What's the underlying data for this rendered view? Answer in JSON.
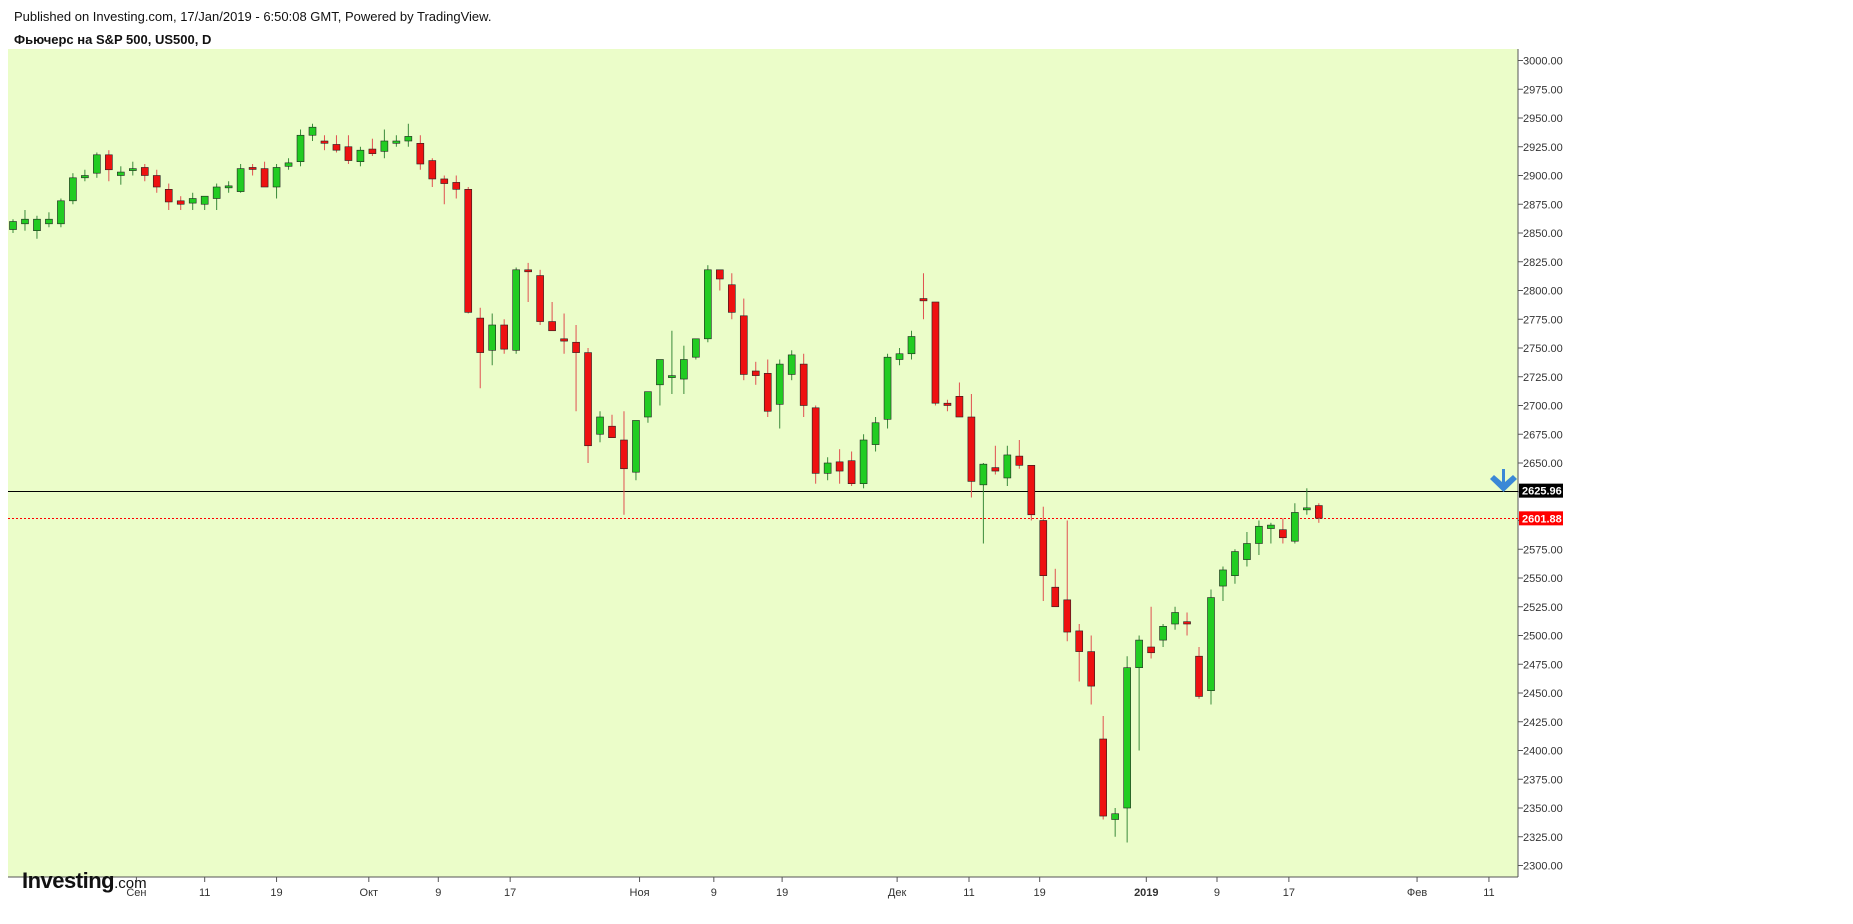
{
  "header": {
    "published": "Published on Investing.com, 17/Jan/2019 - 6:50:08 GMT, Powered by TradingView.",
    "title": "Фьючерс на S&P 500, US500, D"
  },
  "logo": {
    "main": "Investing",
    "suffix": ".com"
  },
  "colors": {
    "background": "#ebfdc9",
    "up": "#22cc22",
    "down": "#ee1111",
    "wick_up": "#3a8a3a",
    "wick_down": "#e05050",
    "arrow": "#3b88d6",
    "price_line_black": "#000000",
    "price_line_red": "#ff0000"
  },
  "chart_data": {
    "type": "candlestick",
    "title": "Фьючерс на S&P 500, US500, D",
    "ylim": [
      2290,
      3010
    ],
    "y_ticks": [
      "2300.00",
      "2325.00",
      "2350.00",
      "2375.00",
      "2400.00",
      "2425.00",
      "2450.00",
      "2475.00",
      "2500.00",
      "2525.00",
      "2550.00",
      "2575.00",
      "2600.00",
      "2625.00",
      "2650.00",
      "2675.00",
      "2700.00",
      "2725.00",
      "2750.00",
      "2775.00",
      "2800.00",
      "2825.00",
      "2850.00",
      "2875.00",
      "2900.00",
      "2925.00",
      "2950.00",
      "2975.00",
      "3000.00"
    ],
    "x_ticks": [
      {
        "label": "Сен",
        "bold": false
      },
      {
        "label": "11",
        "bold": false
      },
      {
        "label": "19",
        "bold": false
      },
      {
        "label": "Окт",
        "bold": false
      },
      {
        "label": "9",
        "bold": false
      },
      {
        "label": "17",
        "bold": false
      },
      {
        "label": "Ноя",
        "bold": false
      },
      {
        "label": "9",
        "bold": false
      },
      {
        "label": "19",
        "bold": false
      },
      {
        "label": "Дек",
        "bold": false
      },
      {
        "label": "11",
        "bold": false
      },
      {
        "label": "19",
        "bold": false
      },
      {
        "label": "2019",
        "bold": true
      },
      {
        "label": "9",
        "bold": false
      },
      {
        "label": "17",
        "bold": false
      },
      {
        "label": "Фев",
        "bold": false
      },
      {
        "label": "11",
        "bold": false
      }
    ],
    "price_lines": [
      {
        "value": 2625.96,
        "label": "2625.96",
        "color": "#000000"
      },
      {
        "value": 2601.88,
        "label": "2601.88",
        "color": "#ff0000"
      }
    ],
    "ohlc": [
      [
        2853,
        2862,
        2850,
        2860
      ],
      [
        2858,
        2870,
        2852,
        2862
      ],
      [
        2852,
        2865,
        2845,
        2862
      ],
      [
        2858,
        2868,
        2855,
        2862
      ],
      [
        2858,
        2880,
        2855,
        2878
      ],
      [
        2878,
        2902,
        2875,
        2898
      ],
      [
        2898,
        2905,
        2895,
        2900
      ],
      [
        2902,
        2920,
        2898,
        2918
      ],
      [
        2918,
        2922,
        2895,
        2905
      ],
      [
        2900,
        2908,
        2892,
        2903
      ],
      [
        2905,
        2912,
        2900,
        2906
      ],
      [
        2907,
        2910,
        2895,
        2900
      ],
      [
        2900,
        2905,
        2885,
        2890
      ],
      [
        2888,
        2893,
        2870,
        2877
      ],
      [
        2878,
        2882,
        2870,
        2875
      ],
      [
        2876,
        2885,
        2870,
        2880
      ],
      [
        2875,
        2882,
        2870,
        2882
      ],
      [
        2880,
        2893,
        2870,
        2890
      ],
      [
        2890,
        2895,
        2885,
        2891
      ],
      [
        2886,
        2910,
        2885,
        2906
      ],
      [
        2907,
        2910,
        2900,
        2906
      ],
      [
        2906,
        2912,
        2890,
        2890
      ],
      [
        2890,
        2910,
        2880,
        2907
      ],
      [
        2908,
        2915,
        2905,
        2911
      ],
      [
        2912,
        2940,
        2908,
        2935
      ],
      [
        2935,
        2945,
        2930,
        2942
      ],
      [
        2930,
        2935,
        2922,
        2928
      ],
      [
        2927,
        2935,
        2920,
        2922
      ],
      [
        2925,
        2935,
        2910,
        2913
      ],
      [
        2912,
        2925,
        2908,
        2922
      ],
      [
        2923,
        2932,
        2917,
        2919
      ],
      [
        2921,
        2940,
        2915,
        2930
      ],
      [
        2928,
        2935,
        2925,
        2930
      ],
      [
        2930,
        2945,
        2925,
        2934
      ],
      [
        2928,
        2935,
        2905,
        2910
      ],
      [
        2913,
        2915,
        2890,
        2897
      ],
      [
        2897,
        2900,
        2875,
        2893
      ],
      [
        2894,
        2900,
        2880,
        2888
      ],
      [
        2888,
        2890,
        2780,
        2781
      ],
      [
        2776,
        2785,
        2715,
        2746
      ],
      [
        2748,
        2780,
        2735,
        2770
      ],
      [
        2770,
        2775,
        2745,
        2749
      ],
      [
        2748,
        2820,
        2745,
        2818
      ],
      [
        2818,
        2824,
        2790,
        2817
      ],
      [
        2813,
        2818,
        2770,
        2773
      ],
      [
        2773,
        2790,
        2765,
        2765
      ],
      [
        2758,
        2780,
        2745,
        2756
      ],
      [
        2755,
        2770,
        2695,
        2746
      ],
      [
        2746,
        2750,
        2650,
        2665
      ],
      [
        2675,
        2695,
        2668,
        2690
      ],
      [
        2682,
        2692,
        2675,
        2672
      ],
      [
        2670,
        2695,
        2605,
        2645
      ],
      [
        2642,
        2687,
        2635,
        2687
      ],
      [
        2690,
        2712,
        2685,
        2712
      ],
      [
        2718,
        2735,
        2700,
        2740
      ],
      [
        2725,
        2765,
        2710,
        2726
      ],
      [
        2723,
        2752,
        2710,
        2740
      ],
      [
        2742,
        2758,
        2740,
        2758
      ],
      [
        2758,
        2822,
        2755,
        2818
      ],
      [
        2818,
        2818,
        2800,
        2810
      ],
      [
        2805,
        2815,
        2775,
        2781
      ],
      [
        2778,
        2793,
        2722,
        2727
      ],
      [
        2730,
        2738,
        2718,
        2726
      ],
      [
        2728,
        2740,
        2690,
        2695
      ],
      [
        2701,
        2740,
        2680,
        2736
      ],
      [
        2727,
        2748,
        2722,
        2744
      ],
      [
        2736,
        2745,
        2690,
        2700
      ],
      [
        2698,
        2700,
        2632,
        2641
      ],
      [
        2641,
        2655,
        2635,
        2650
      ],
      [
        2651,
        2662,
        2632,
        2643
      ],
      [
        2652,
        2660,
        2630,
        2632
      ],
      [
        2632,
        2675,
        2628,
        2670
      ],
      [
        2666,
        2690,
        2660,
        2685
      ],
      [
        2688,
        2745,
        2680,
        2742
      ],
      [
        2740,
        2750,
        2735,
        2745
      ],
      [
        2745,
        2765,
        2740,
        2760
      ],
      [
        2793,
        2815,
        2775,
        2791
      ],
      [
        2790,
        2790,
        2700,
        2702
      ],
      [
        2702,
        2705,
        2695,
        2700
      ],
      [
        2708,
        2720,
        2690,
        2690
      ],
      [
        2690,
        2710,
        2620,
        2634
      ],
      [
        2631,
        2650,
        2580,
        2649
      ],
      [
        2646,
        2665,
        2640,
        2643
      ],
      [
        2637,
        2665,
        2630,
        2657
      ],
      [
        2656,
        2670,
        2645,
        2648
      ],
      [
        2648,
        2648,
        2600,
        2605
      ],
      [
        2600,
        2612,
        2530,
        2552
      ],
      [
        2542,
        2558,
        2530,
        2525
      ],
      [
        2531,
        2600,
        2495,
        2503
      ],
      [
        2504,
        2510,
        2460,
        2486
      ],
      [
        2486,
        2500,
        2440,
        2456
      ],
      [
        2410,
        2430,
        2340,
        2343
      ],
      [
        2340,
        2350,
        2325,
        2345
      ],
      [
        2350,
        2482,
        2320,
        2472
      ],
      [
        2472,
        2500,
        2400,
        2496
      ],
      [
        2490,
        2525,
        2480,
        2485
      ],
      [
        2496,
        2510,
        2490,
        2508
      ],
      [
        2510,
        2525,
        2505,
        2520
      ],
      [
        2512,
        2520,
        2500,
        2510
      ],
      [
        2482,
        2490,
        2445,
        2447
      ],
      [
        2452,
        2540,
        2440,
        2533
      ],
      [
        2543,
        2560,
        2530,
        2557
      ],
      [
        2552,
        2575,
        2545,
        2573
      ],
      [
        2566,
        2590,
        2560,
        2580
      ],
      [
        2580,
        2600,
        2570,
        2595
      ],
      [
        2593,
        2598,
        2580,
        2596
      ],
      [
        2592,
        2602,
        2580,
        2585
      ],
      [
        2582,
        2615,
        2580,
        2607
      ],
      [
        2611,
        2628,
        2605,
        2611
      ],
      [
        2613,
        2615,
        2598,
        2602
      ]
    ]
  },
  "annotation": {
    "icon": "down-arrow-icon"
  }
}
